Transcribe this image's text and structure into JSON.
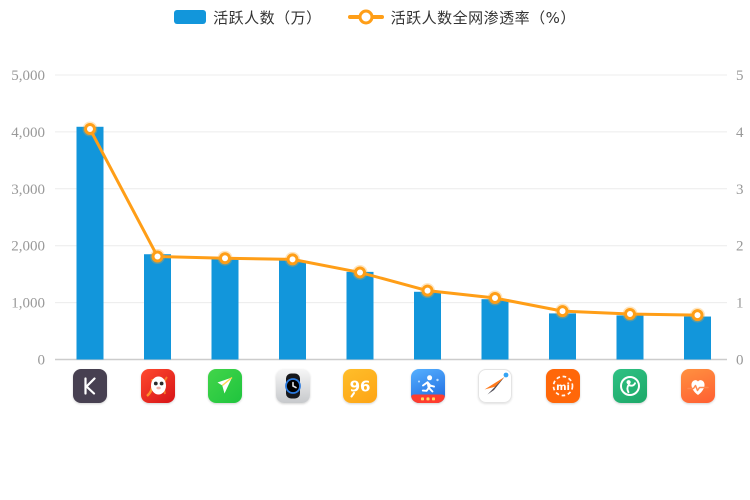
{
  "legend": {
    "items": [
      {
        "label": "活跃人数（万）",
        "type": "bar"
      },
      {
        "label": "活跃人数全网渗透率（%）",
        "type": "line"
      }
    ]
  },
  "colors": {
    "bar": "#1296db",
    "line": "#ff9e17",
    "marker_fill": "#ffffff",
    "marker_glow": "rgba(255,170,40,0.30)",
    "axis_text": "#999999",
    "grid": "#ececec",
    "axis_line": "#cccccc",
    "legend_text": "#333333"
  },
  "chart_data": {
    "type": "bar",
    "subtype": "bar-line-combo",
    "title": "",
    "legend_position": "top",
    "grid": true,
    "categories": [
      "keep-app-icon",
      "codoon-red-mascot-app-icon",
      "green-arrow-sport-app-icon",
      "smartwatch-app-icon",
      "number-96-app-icon",
      "blue-walker-reward-app-icon",
      "joyrun-paper-plane-app-icon",
      "mi-fit-app-icon",
      "green-figure-ring-app-icon",
      "heart-pulse-health-app-icon"
    ],
    "series": [
      {
        "name": "活跃人数（万）",
        "type": "bar",
        "yaxis": "left",
        "values": [
          4090,
          1850,
          1780,
          1740,
          1540,
          1190,
          1060,
          810,
          775,
          755
        ]
      },
      {
        "name": "活跃人数全网渗透率（%）",
        "type": "line",
        "yaxis": "right",
        "values": [
          4.05,
          1.81,
          1.78,
          1.76,
          1.53,
          1.21,
          1.08,
          0.85,
          0.8,
          0.78
        ]
      }
    ],
    "left_axis": {
      "min": 0,
      "max": 5000,
      "ticks": [
        "0",
        "1,000",
        "2,000",
        "3,000",
        "4,000",
        "5,000"
      ]
    },
    "right_axis": {
      "min": 0,
      "max": 5,
      "ticks": [
        "0",
        "1",
        "2",
        "3",
        "4",
        "5"
      ]
    }
  }
}
